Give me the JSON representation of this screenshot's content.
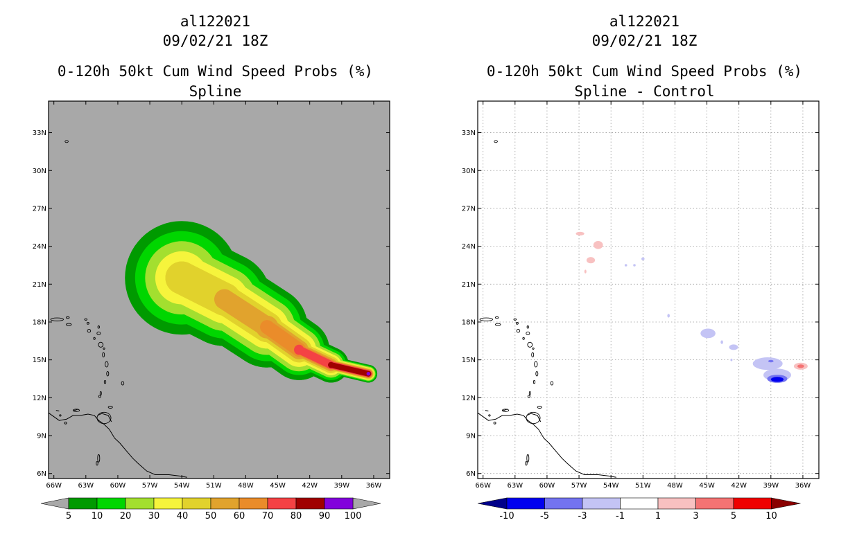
{
  "chart_data": [
    {
      "type": "heatmap",
      "storm_id": "al122021",
      "datetime": "09/02/21 18Z",
      "title": "0-120h 50kt Cum Wind Speed Probs (%)",
      "subtitle": "Spline",
      "x_ticks": [
        "66W",
        "63W",
        "60W",
        "57W",
        "54W",
        "51W",
        "48W",
        "45W",
        "42W",
        "39W",
        "36W"
      ],
      "y_ticks": [
        "6N",
        "9N",
        "12N",
        "15N",
        "18N",
        "21N",
        "24N",
        "27N",
        "30N",
        "33N"
      ],
      "xlim": [
        -66.5,
        -34.5
      ],
      "ylim": [
        5.6,
        35.5
      ],
      "colorbar": {
        "levels": [
          "5",
          "10",
          "20",
          "30",
          "40",
          "50",
          "60",
          "70",
          "80",
          "90",
          "100"
        ],
        "colors": [
          "#009a00",
          "#00d600",
          "#a3df2f",
          "#f6f43c",
          "#e1d22c",
          "#e1a32d",
          "#ea8c2a",
          "#f44244",
          "#a00000",
          "#8202dc"
        ]
      },
      "swath": {
        "centerline": [
          [
            -54.0,
            21.5
          ],
          [
            -50.0,
            19.8
          ],
          [
            -46.0,
            17.6
          ],
          [
            -43.0,
            15.8
          ],
          [
            -40.0,
            14.6
          ],
          [
            -36.5,
            13.9
          ]
        ],
        "bands": [
          {
            "level": "5",
            "width_deg": [
              4.5,
              3.7,
              3.2,
              2.4,
              1.4,
              0.7
            ]
          },
          {
            "level": "10",
            "width_deg": [
              3.7,
              3.1,
              2.7,
              2.0,
              1.2,
              0.62
            ]
          },
          {
            "level": "20",
            "width_deg": [
              2.9,
              2.5,
              2.2,
              1.7,
              1.0,
              0.55
            ]
          },
          {
            "level": "30",
            "width_deg": [
              2.1,
              1.9,
              1.7,
              1.35,
              0.82,
              0.48
            ]
          },
          {
            "level": "40",
            "width_deg": [
              1.3,
              1.3,
              1.2,
              1.0,
              0.65,
              0.42
            ]
          },
          {
            "level": "50",
            "width_deg": [
              0.0,
              0.8,
              0.9,
              0.75,
              0.5,
              0.36
            ]
          },
          {
            "level": "60",
            "width_deg": [
              0.0,
              0.0,
              0.55,
              0.55,
              0.4,
              0.32
            ]
          },
          {
            "level": "70",
            "width_deg": [
              0.0,
              0.0,
              0.0,
              0.4,
              0.32,
              0.28
            ]
          },
          {
            "level": "80",
            "width_deg": [
              0.0,
              0.0,
              0.0,
              0.0,
              0.24,
              0.22
            ]
          },
          {
            "level": "90",
            "width_deg": [
              0.0,
              0.0,
              0.0,
              0.0,
              0.0,
              0.15
            ]
          }
        ]
      }
    },
    {
      "type": "heatmap",
      "storm_id": "al122021",
      "datetime": "09/02/21 18Z",
      "title": "0-120h 50kt Cum Wind Speed Probs (%)",
      "subtitle": "Spline - Control",
      "x_ticks": [
        "66W",
        "63W",
        "60W",
        "57W",
        "54W",
        "51W",
        "48W",
        "45W",
        "42W",
        "39W",
        "36W"
      ],
      "y_ticks": [
        "6N",
        "9N",
        "12N",
        "15N",
        "18N",
        "21N",
        "24N",
        "27N",
        "30N",
        "33N"
      ],
      "xlim": [
        -66.5,
        -34.5
      ],
      "ylim": [
        5.6,
        35.5
      ],
      "grid": true,
      "colorbar": {
        "levels": [
          "-10",
          "-5",
          "-3",
          "-1",
          "1",
          "3",
          "5",
          "10"
        ],
        "colors": [
          "#00008a",
          "#0000ef",
          "#7373f0",
          "#c4c4f5",
          "#ffffff",
          "#f8c1c1",
          "#f47373",
          "#ef0000",
          "#8a0000"
        ]
      },
      "blobs": [
        {
          "lon": -56.9,
          "lat": 25.0,
          "rx": 0.4,
          "ry": 0.15,
          "color": "#f8c1c1"
        },
        {
          "lon": -55.2,
          "lat": 24.1,
          "rx": 0.45,
          "ry": 0.32,
          "color": "#f8c1c1"
        },
        {
          "lon": -55.9,
          "lat": 22.9,
          "rx": 0.4,
          "ry": 0.25,
          "color": "#f8c1c1"
        },
        {
          "lon": -56.4,
          "lat": 22.0,
          "rx": 0.1,
          "ry": 0.15,
          "color": "#f8c1c1"
        },
        {
          "lon": -52.6,
          "lat": 22.5,
          "rx": 0.12,
          "ry": 0.1,
          "color": "#c4c4f5"
        },
        {
          "lon": -51.8,
          "lat": 22.5,
          "rx": 0.12,
          "ry": 0.1,
          "color": "#c4c4f5"
        },
        {
          "lon": -51.0,
          "lat": 23.0,
          "rx": 0.15,
          "ry": 0.12,
          "color": "#c4c4f5"
        },
        {
          "lon": -48.6,
          "lat": 18.5,
          "rx": 0.12,
          "ry": 0.15,
          "color": "#c4c4f5"
        },
        {
          "lon": -44.9,
          "lat": 17.1,
          "rx": 0.7,
          "ry": 0.38,
          "color": "#c4c4f5"
        },
        {
          "lon": -43.6,
          "lat": 16.4,
          "rx": 0.12,
          "ry": 0.15,
          "color": "#c4c4f5"
        },
        {
          "lon": -42.5,
          "lat": 16.0,
          "rx": 0.42,
          "ry": 0.22,
          "color": "#c4c4f5"
        },
        {
          "lon": -42.7,
          "lat": 15.0,
          "rx": 0.1,
          "ry": 0.1,
          "color": "#c4c4f5"
        },
        {
          "lon": -39.3,
          "lat": 14.7,
          "rx": 1.4,
          "ry": 0.5,
          "color": "#c4c4f5"
        },
        {
          "lon": -38.4,
          "lat": 13.8,
          "rx": 1.3,
          "ry": 0.5,
          "color": "#c4c4f5"
        },
        {
          "lon": -38.4,
          "lat": 13.5,
          "rx": 0.95,
          "ry": 0.32,
          "color": "#7373f0"
        },
        {
          "lon": -38.4,
          "lat": 13.45,
          "rx": 0.6,
          "ry": 0.2,
          "color": "#0000ef"
        },
        {
          "lon": -39.0,
          "lat": 14.9,
          "rx": 0.25,
          "ry": 0.1,
          "color": "#7373f0"
        },
        {
          "lon": -36.2,
          "lat": 14.5,
          "rx": 0.65,
          "ry": 0.28,
          "color": "#f8c1c1"
        },
        {
          "lon": -36.2,
          "lat": 14.5,
          "rx": 0.32,
          "ry": 0.14,
          "color": "#f47373"
        }
      ]
    }
  ]
}
